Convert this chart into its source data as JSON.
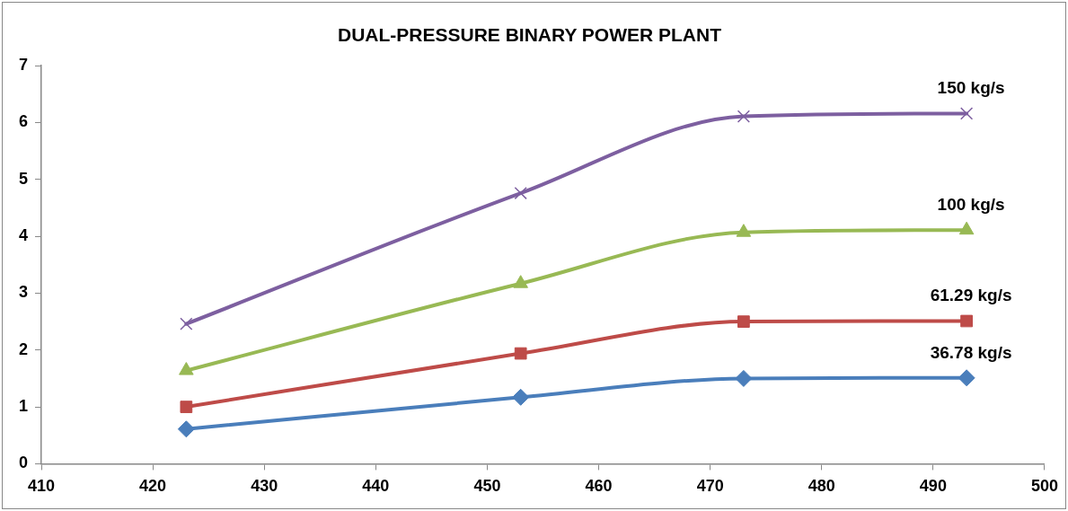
{
  "chart_data": {
    "type": "line",
    "title": "DUAL-PRESSURE BINARY POWER PLANT",
    "x": [
      423,
      453,
      473,
      493
    ],
    "series": [
      {
        "name": "36.78 kg/s",
        "color": "#4a7ebb",
        "marker": "diamond",
        "values": [
          0.61,
          1.17,
          1.5,
          1.51
        ]
      },
      {
        "name": "61.29 kg/s",
        "color": "#be4b48",
        "marker": "square",
        "values": [
          1.0,
          1.94,
          2.5,
          2.51
        ]
      },
      {
        "name": "100 kg/s",
        "color": "#98b954",
        "marker": "triangle",
        "values": [
          1.64,
          3.17,
          4.07,
          4.11
        ]
      },
      {
        "name": "150 kg/s",
        "color": "#7d5fa0",
        "marker": "cross",
        "values": [
          2.46,
          4.76,
          6.11,
          6.16
        ]
      }
    ],
    "xlim": [
      410,
      500
    ],
    "xticks": [
      410,
      420,
      430,
      440,
      450,
      460,
      470,
      480,
      490,
      500
    ],
    "ylim": [
      0,
      7
    ],
    "yticks": [
      0,
      1,
      2,
      3,
      4,
      5,
      6,
      7
    ],
    "grid": false,
    "legend": false
  }
}
